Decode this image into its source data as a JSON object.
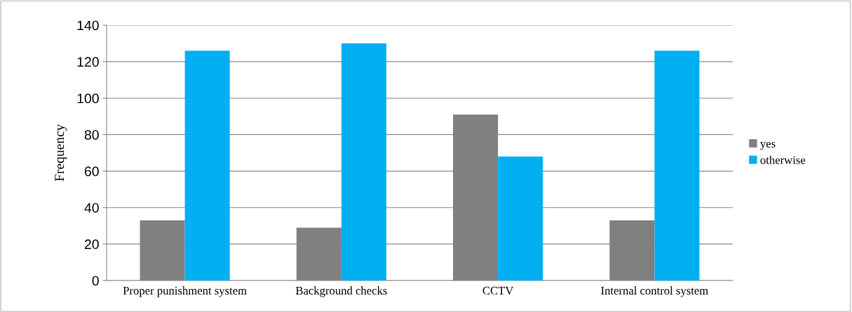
{
  "chart_data": {
    "type": "bar",
    "ylabel": "Frequency",
    "categories": [
      "Proper punishment system",
      "Background checks",
      "CCTV",
      "Internal control system"
    ],
    "series": [
      {
        "name": "yes",
        "color": "#808080",
        "values": [
          33,
          29,
          91,
          33
        ]
      },
      {
        "name": "otherwise",
        "color": "#00b0f0",
        "values": [
          126,
          130,
          68,
          126
        ]
      }
    ],
    "ylim": [
      0,
      140
    ],
    "yticks": [
      0,
      20,
      40,
      60,
      80,
      100,
      120,
      140
    ],
    "grid": "y",
    "legend": "right"
  }
}
